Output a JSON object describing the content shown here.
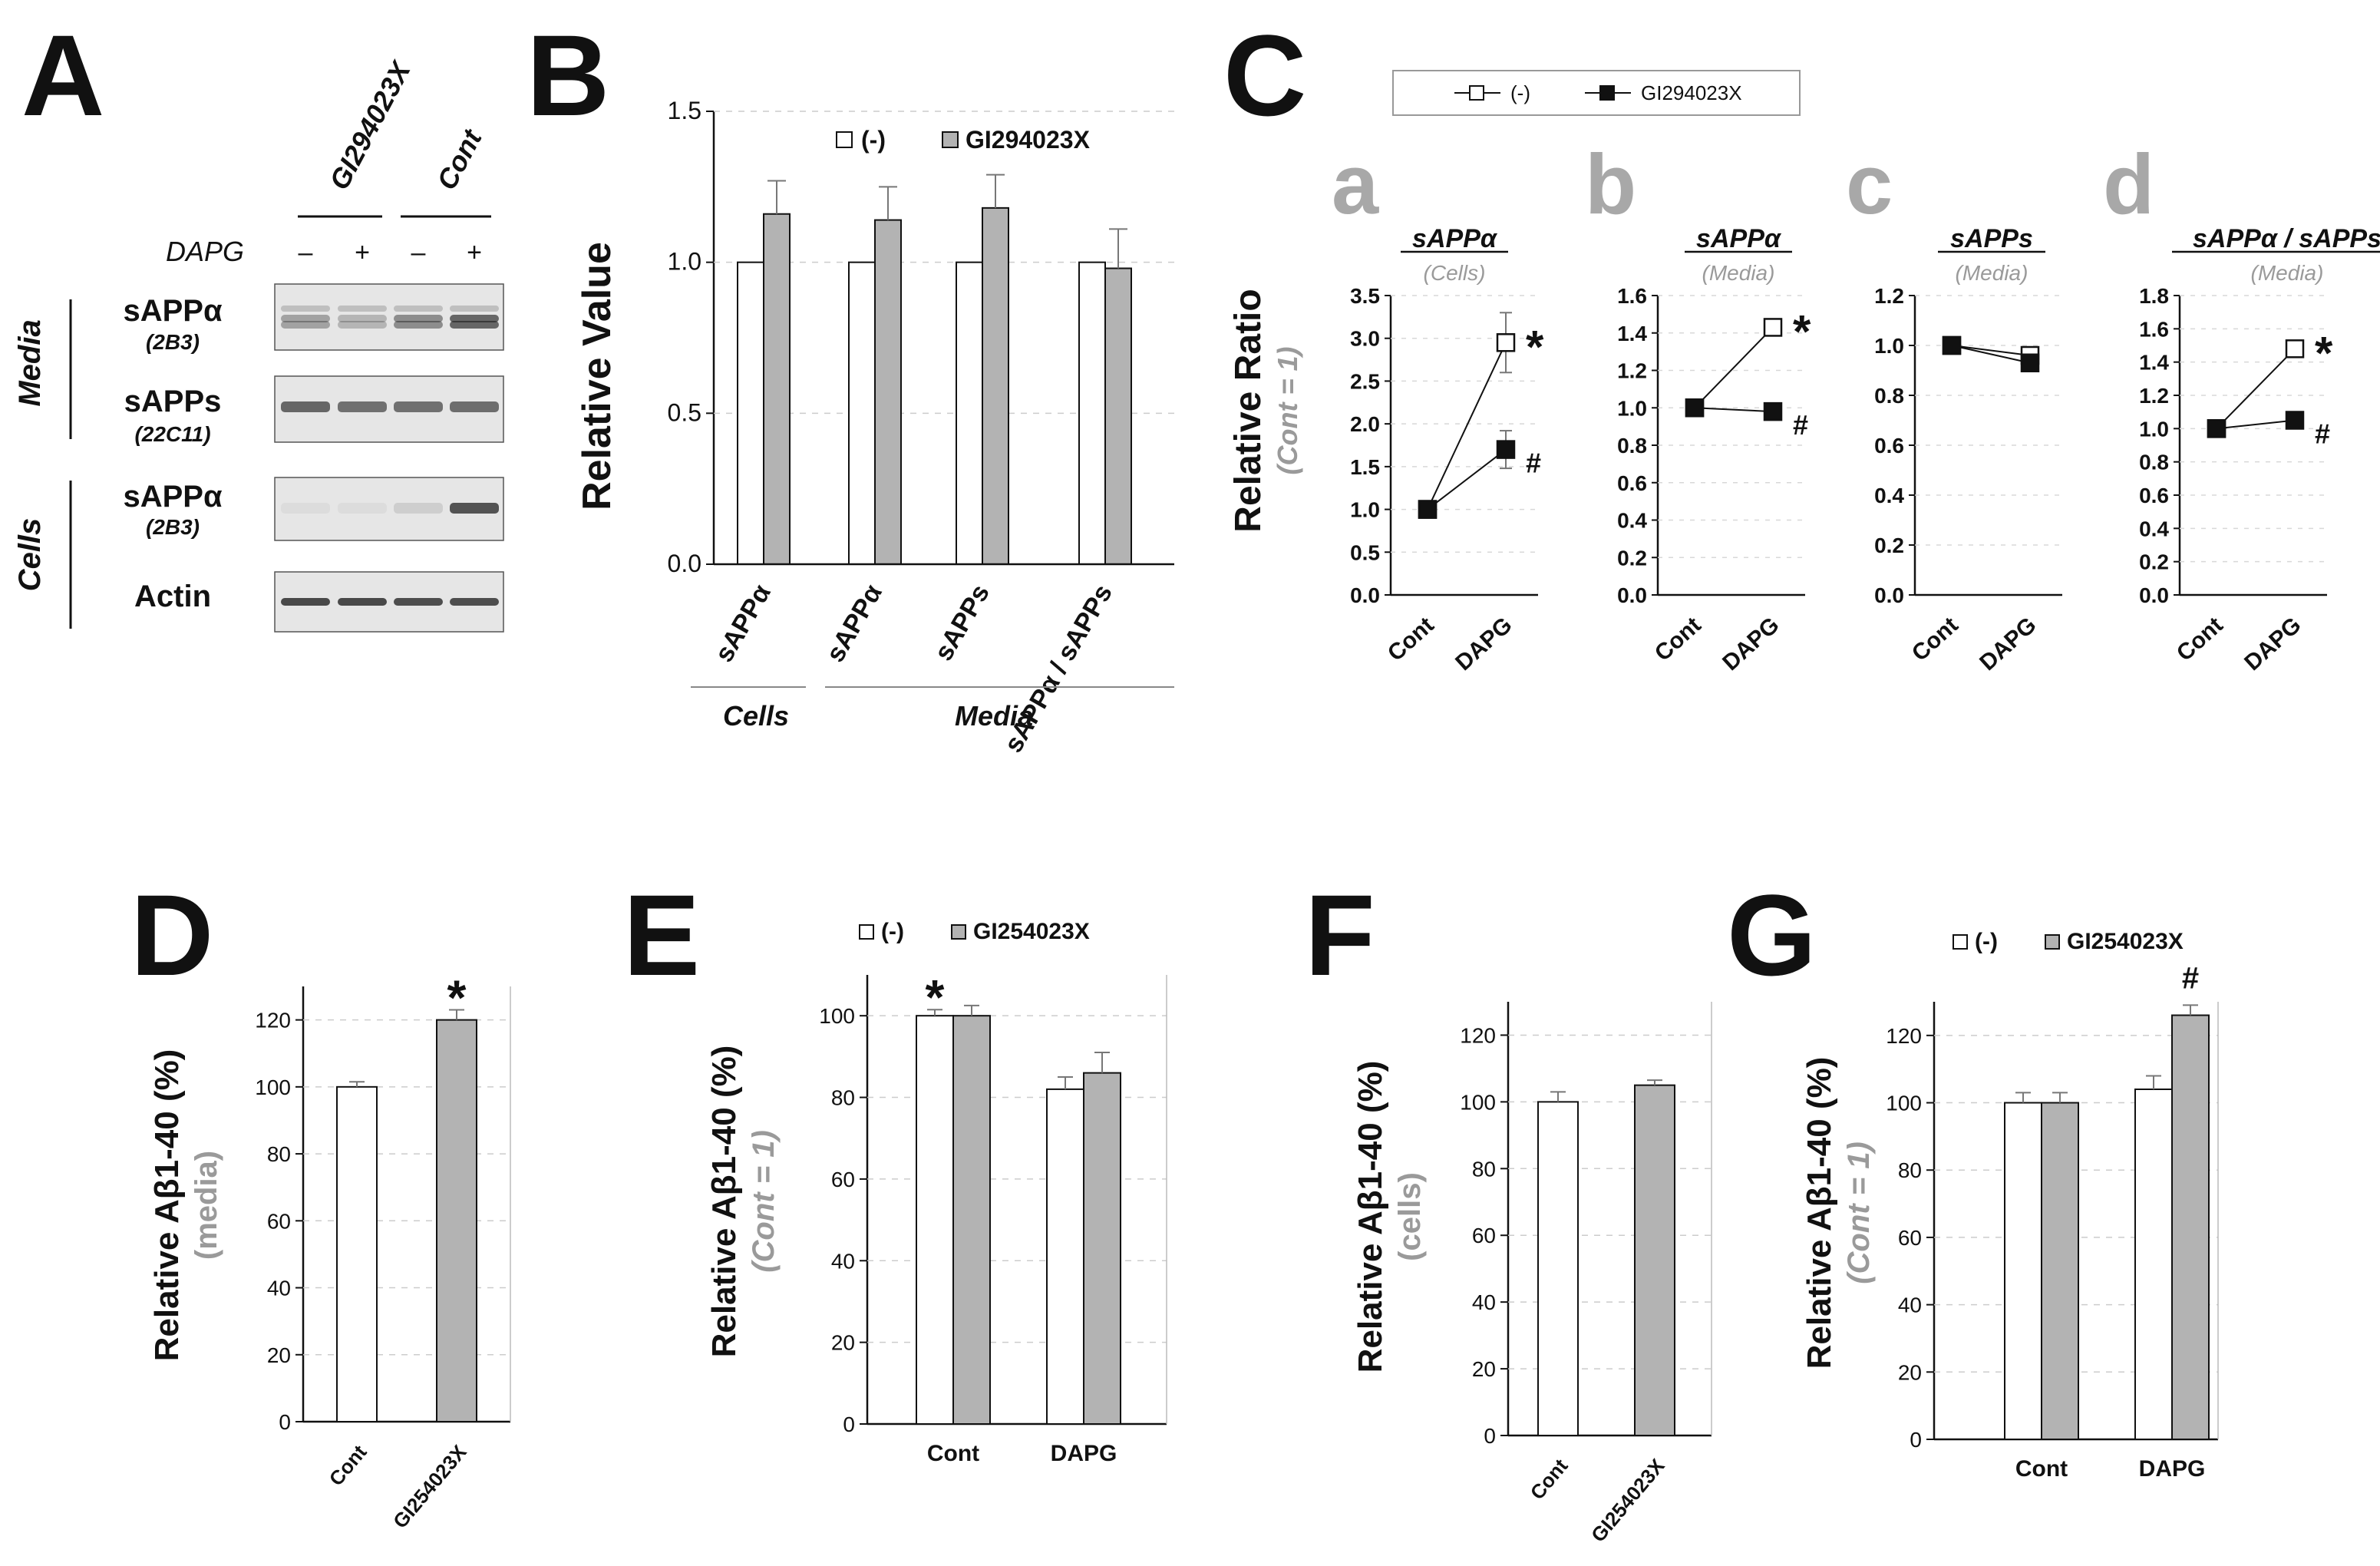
{
  "colors": {
    "open": "#ffffff",
    "filled": "#b3b3b3",
    "black": "#111111",
    "grey_text": "#9a9a9a",
    "grid": "#cccccc"
  },
  "panel_letters": {
    "A": "A",
    "B": "B",
    "C": "C",
    "D": "D",
    "E": "E",
    "F": "F",
    "G": "G"
  },
  "blot": {
    "treatments": [
      "GI294023X",
      "Cont"
    ],
    "dapg_label": "DAPG",
    "dapg_signs": [
      "–",
      "+",
      "–",
      "+"
    ],
    "groups": [
      {
        "name": "Media",
        "rows": [
          {
            "label": "sAPPα",
            "antibody": "(2B3)"
          },
          {
            "label": "sAPPs",
            "antibody": "(22C11)"
          }
        ]
      },
      {
        "name": "Cells",
        "rows": [
          {
            "label": "sAPPα",
            "antibody": "(2B3)"
          },
          {
            "label": "Actin",
            "antibody": ""
          }
        ]
      }
    ]
  },
  "chart_data": [
    {
      "id": "B",
      "type": "bar",
      "ylabel": "Relative Value",
      "ylim": [
        0,
        1.5
      ],
      "yticks": [
        "0.0",
        "0.5",
        "1.0",
        "1.5"
      ],
      "legend": [
        "(-)",
        "GI294023X"
      ],
      "categories": [
        "sAPPα",
        "sAPPα",
        "sAPPs",
        "sAPPα / sAPPs"
      ],
      "groups": [
        "Cells",
        "Media"
      ],
      "series": [
        {
          "name": "(-)",
          "values": [
            1.0,
            1.0,
            1.0,
            1.0
          ],
          "errors": [
            0,
            0,
            0,
            0
          ]
        },
        {
          "name": "GI294023X",
          "values": [
            1.16,
            1.14,
            1.18,
            0.98
          ],
          "errors": [
            0.11,
            0.11,
            0.11,
            0.13
          ]
        }
      ]
    },
    {
      "id": "C",
      "type": "line",
      "ylabel": "Relative Ratio",
      "ylabel_note": "(Cont = 1)",
      "legend": [
        "(-)",
        "GI294023X"
      ],
      "categories": [
        "Cont",
        "DAPG"
      ],
      "subplots": [
        {
          "letter": "a",
          "title": "sAPPα",
          "subtitle": "(Cells)",
          "ylim": [
            0,
            3.5
          ],
          "yticks": [
            "0.0",
            "0.5",
            "1.0",
            "1.5",
            "2.0",
            "2.5",
            "3.0",
            "3.5"
          ],
          "series": [
            {
              "name": "(-)",
              "values": [
                1.0,
                2.95
              ],
              "errors": [
                0,
                0.35
              ]
            },
            {
              "name": "GI294023X",
              "values": [
                1.0,
                1.7
              ],
              "errors": [
                0,
                0.22
              ]
            }
          ],
          "marks": [
            "*",
            "#"
          ]
        },
        {
          "letter": "b",
          "title": "sAPPα",
          "subtitle": "(Media)",
          "ylim": [
            0,
            1.6
          ],
          "yticks": [
            "0.0",
            "0.2",
            "0.4",
            "0.6",
            "0.8",
            "1.0",
            "1.2",
            "1.4",
            "1.6"
          ],
          "series": [
            {
              "name": "(-)",
              "values": [
                1.0,
                1.43
              ],
              "errors": [
                0,
                0.04
              ]
            },
            {
              "name": "GI294023X",
              "values": [
                1.0,
                0.98
              ],
              "errors": [
                0,
                0.02
              ]
            }
          ],
          "marks": [
            "*",
            "#"
          ]
        },
        {
          "letter": "c",
          "title": "sAPPs",
          "subtitle": "(Media)",
          "ylim": [
            0,
            1.2
          ],
          "yticks": [
            "0.0",
            "0.2",
            "0.4",
            "0.6",
            "0.8",
            "1.0",
            "1.2"
          ],
          "series": [
            {
              "name": "(-)",
              "values": [
                1.0,
                0.96
              ],
              "errors": [
                0,
                0.02
              ]
            },
            {
              "name": "GI294023X",
              "values": [
                1.0,
                0.93
              ],
              "errors": [
                0,
                0.02
              ]
            }
          ],
          "marks": [
            "",
            ""
          ]
        },
        {
          "letter": "d",
          "title": "sAPPα / sAPPs",
          "subtitle": "(Media)",
          "ylim": [
            0,
            1.8
          ],
          "yticks": [
            "0.0",
            "0.2",
            "0.4",
            "0.6",
            "0.8",
            "1.0",
            "1.2",
            "1.4",
            "1.6",
            "1.8"
          ],
          "series": [
            {
              "name": "(-)",
              "values": [
                1.0,
                1.48
              ],
              "errors": [
                0,
                0.02
              ]
            },
            {
              "name": "GI294023X",
              "values": [
                1.0,
                1.05
              ],
              "errors": [
                0,
                0.02
              ]
            }
          ],
          "marks": [
            "*",
            "#"
          ]
        }
      ]
    },
    {
      "id": "D",
      "type": "bar",
      "ylabel": "Relative Aβ1-40 (%)",
      "ylabel_note": "(media)",
      "ylim": [
        0,
        130
      ],
      "yticks": [
        "0",
        "20",
        "40",
        "60",
        "80",
        "100",
        "120"
      ],
      "categories": [
        "Cont",
        "GI254023X"
      ],
      "series": [
        {
          "name": "values",
          "values": [
            100,
            120
          ],
          "errors": [
            1.5,
            3
          ]
        }
      ],
      "marks": [
        "",
        "*"
      ]
    },
    {
      "id": "E",
      "type": "bar",
      "ylabel": "Relative Aβ1-40 (%)",
      "ylabel_note": "(Cont = 1)",
      "ylim": [
        0,
        110
      ],
      "yticks": [
        "0",
        "20",
        "40",
        "60",
        "80",
        "100"
      ],
      "legend": [
        "(-)",
        "GI254023X"
      ],
      "categories": [
        "Cont",
        "DAPG"
      ],
      "series": [
        {
          "name": "(-)",
          "values": [
            100,
            82
          ],
          "errors": [
            1.5,
            3
          ]
        },
        {
          "name": "GI254023X",
          "values": [
            100,
            86
          ],
          "errors": [
            2.5,
            5
          ]
        }
      ],
      "marks": [
        "*",
        ""
      ]
    },
    {
      "id": "F",
      "type": "bar",
      "ylabel": "Relative Aβ1-40 (%)",
      "ylabel_note": "(cells)",
      "ylim": [
        0,
        130
      ],
      "yticks": [
        "0",
        "20",
        "40",
        "60",
        "80",
        "100",
        "120"
      ],
      "categories": [
        "Cont",
        "GI254023X"
      ],
      "series": [
        {
          "name": "values",
          "values": [
            100,
            105
          ],
          "errors": [
            3,
            1.5
          ]
        }
      ],
      "marks": [
        "",
        ""
      ]
    },
    {
      "id": "G",
      "type": "bar",
      "ylabel": "Relative Aβ1-40 (%)",
      "ylabel_note": "(Cont = 1)",
      "ylim": [
        0,
        130
      ],
      "yticks": [
        "0",
        "20",
        "40",
        "60",
        "80",
        "100",
        "120"
      ],
      "legend": [
        "(-)",
        "GI254023X"
      ],
      "categories": [
        "Cont",
        "DAPG"
      ],
      "series": [
        {
          "name": "(-)",
          "values": [
            100,
            104
          ],
          "errors": [
            3,
            4
          ]
        },
        {
          "name": "GI254023X",
          "values": [
            100,
            126
          ],
          "errors": [
            3,
            3
          ]
        }
      ],
      "marks": [
        "",
        "#"
      ]
    }
  ]
}
